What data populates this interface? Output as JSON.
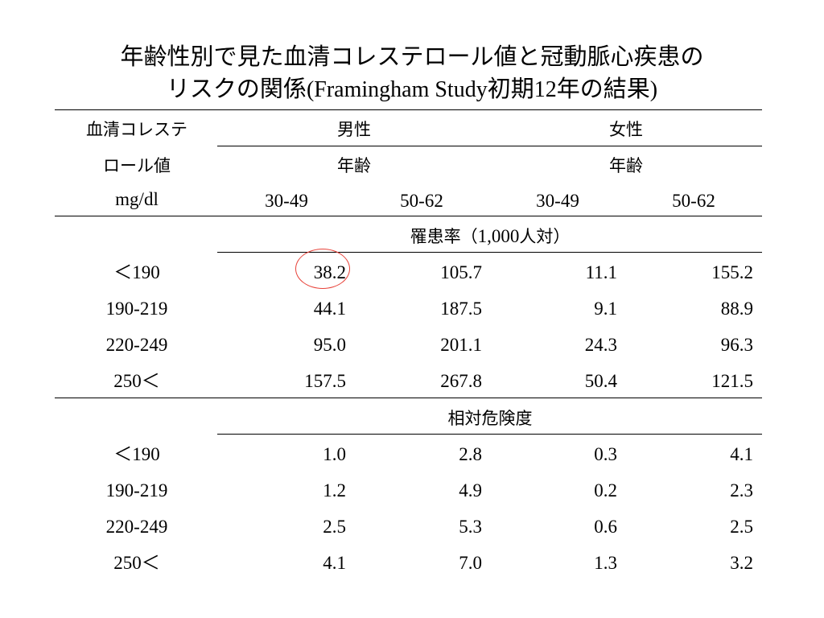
{
  "title": {
    "line1": "年齢性別で見た血清コレステロール値と冠動脈心疾患の",
    "line2_jp": "リスクの関係",
    "line2_latin": "(Framingham Study",
    "line2_jp2": "初期",
    "line2_num": "12",
    "line2_jp3": "年の結果",
    "line2_close": ")"
  },
  "header": {
    "row_label_1": "血清コレステ",
    "row_label_2": "ロール値",
    "row_label_unit": "mg/dl",
    "male": "男性",
    "female": "女性",
    "age_male": "年齢",
    "age_female": "年齢",
    "age_groups": [
      "30-49",
      "50-62",
      "30-49",
      "50-62"
    ]
  },
  "section1": {
    "label_jp": "罹患率（",
    "label_num": "1,000",
    "label_jp2": "人対）",
    "rows": [
      {
        "chol": "＜190",
        "values": [
          "38.2",
          "105.7",
          "11.1",
          "155.2"
        ]
      },
      {
        "chol": "190-219",
        "values": [
          "44.1",
          "187.5",
          "9.1",
          "88.9"
        ]
      },
      {
        "chol": "220-249",
        "values": [
          "95.0",
          "201.1",
          "24.3",
          "96.3"
        ]
      },
      {
        "chol": "250＜",
        "values": [
          "157.5",
          "267.8",
          "50.4",
          "121.5"
        ]
      }
    ]
  },
  "section2": {
    "label": "相対危険度",
    "rows": [
      {
        "chol": "＜190",
        "values": [
          "1.0",
          "2.8",
          "0.3",
          "4.1"
        ]
      },
      {
        "chol": "190-219",
        "values": [
          "1.2",
          "4.9",
          "0.2",
          "2.3"
        ]
      },
      {
        "chol": "220-249",
        "values": [
          "2.5",
          "5.3",
          "0.6",
          "2.5"
        ]
      },
      {
        "chol": "250＜",
        "values": [
          "4.1",
          "7.0",
          "1.3",
          "3.2"
        ]
      }
    ]
  },
  "highlight": {
    "color": "#e8433a",
    "target": "38.2"
  }
}
